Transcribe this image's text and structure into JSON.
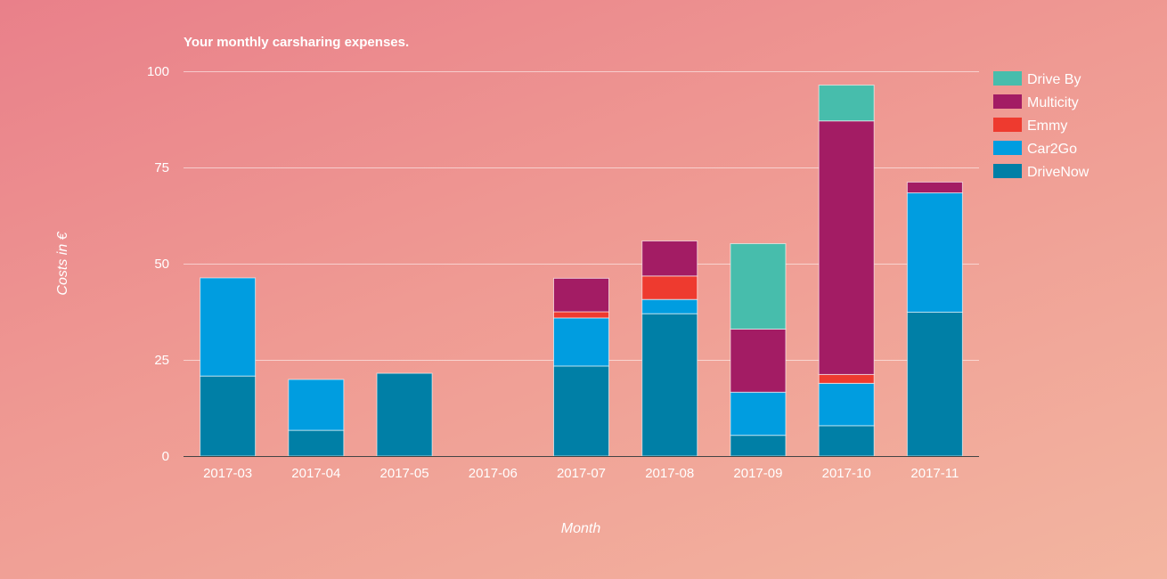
{
  "chart_data": {
    "type": "bar",
    "stacked": true,
    "title": "Your monthly carsharing expenses.",
    "xlabel": "Month",
    "ylabel": "Costs in €",
    "ylim": [
      0,
      100
    ],
    "yticks": [
      0,
      25,
      50,
      75,
      100
    ],
    "grid": true,
    "legend_position": "right-top",
    "categories": [
      "2017-03",
      "2017-04",
      "2017-05",
      "2017-06",
      "2017-07",
      "2017-08",
      "2017-09",
      "2017-10",
      "2017-11"
    ],
    "series": [
      {
        "name": "DriveNow",
        "color": "#007fa6",
        "values": [
          20.8,
          6.7,
          21.5,
          0,
          23.4,
          37.0,
          5.4,
          7.9,
          37.4
        ]
      },
      {
        "name": "Car2Go",
        "color": "#009de0",
        "values": [
          25.5,
          13.2,
          0,
          0,
          12.5,
          3.7,
          11.2,
          11.0,
          31.0
        ]
      },
      {
        "name": "Emmy",
        "color": "#ee3a2f",
        "values": [
          0,
          0,
          0,
          0,
          1.6,
          6.1,
          0,
          2.3,
          0
        ]
      },
      {
        "name": "Multicity",
        "color": "#a31c64",
        "values": [
          0,
          0,
          0,
          0,
          8.7,
          9.1,
          16.4,
          65.9,
          2.8
        ]
      },
      {
        "name": "Drive By",
        "color": "#47bdac",
        "values": [
          0,
          0,
          0,
          0,
          0,
          0,
          22.2,
          9.3,
          0
        ]
      }
    ]
  }
}
